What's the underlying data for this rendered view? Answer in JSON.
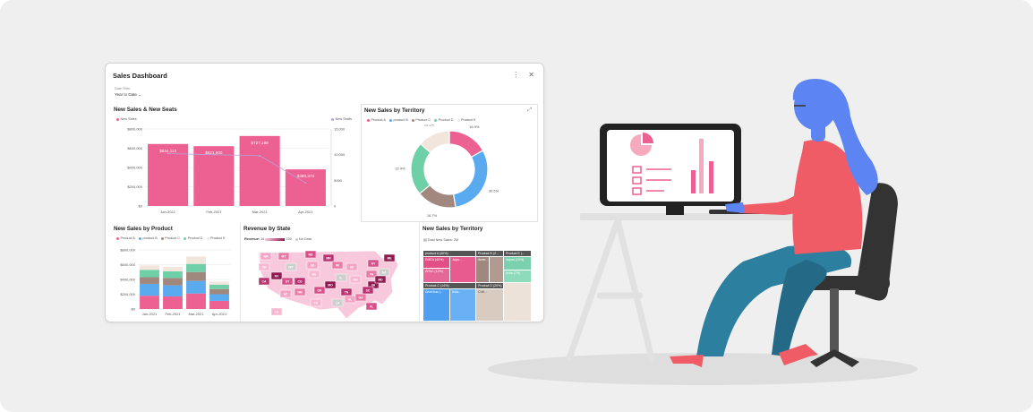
{
  "dashboard": {
    "title": "Sales Dashboard",
    "filter_label": "Date Filter",
    "filter_value": "Year to Date",
    "more_icon": "more-vert-icon",
    "close_icon": "close-icon"
  },
  "panels": {
    "sales_seats": {
      "title": "New Sales & New Seats",
      "legend_left": "New Sales",
      "legend_right": "New Seats"
    },
    "territory_donut": {
      "title": "New Sales by Territory",
      "legend": [
        "Product A",
        "product B",
        "Product C",
        "Product D",
        "Product E"
      ],
      "expand_icon": "expand-icon"
    },
    "by_product": {
      "title": "New Sales by Product",
      "legend": [
        "Product A",
        "product B",
        "Product C",
        "Product D",
        "Product E"
      ]
    },
    "by_state": {
      "title": "Revenue by State",
      "legend_label": "Revenue:",
      "legend_min": "16",
      "legend_max": "230",
      "legend_nodata": "No Data"
    },
    "treemap": {
      "title": "New Sales by Territory",
      "subtitle": "Total New Sales: 2M"
    }
  },
  "chart_data": [
    {
      "type": "bar",
      "title": "New Sales & New Seats",
      "categories": [
        "Jan-2021",
        "Feb-2021",
        "Mar-2021",
        "Apr-2021"
      ],
      "series": [
        {
          "name": "New Sales",
          "values": [
            644113,
            621600,
            727169,
            380373
          ]
        },
        {
          "name": "New Seats",
          "values": [
            10200,
            10000,
            9800,
            4500
          ]
        }
      ],
      "data_labels": [
        "$644,113",
        "$621,600",
        "$727,169",
        "$380,373"
      ],
      "ylim": [
        0,
        800000
      ],
      "y_ticks": [
        "$0",
        "$200,000",
        "$400,000",
        "$600,000",
        "$800,000"
      ],
      "y2_ticks": [
        "0",
        "5000",
        "10,000",
        "15,000"
      ],
      "colors": {
        "bar": "#ec6092",
        "line": "#b9a4d6"
      }
    },
    {
      "type": "pie",
      "title": "New Sales by Territory",
      "labels": [
        "Product A",
        "product B",
        "Product C",
        "Product D",
        "Product E"
      ],
      "values": [
        16.9,
        30.5,
        16.7,
        22.4,
        13.5
      ],
      "data_labels": [
        "16.9%",
        "30.5%",
        "16.7%",
        "22.4%",
        "13.5%"
      ],
      "colors": [
        "#ec6092",
        "#5aaaf0",
        "#a1887f",
        "#6fcfa6",
        "#f2e6dc"
      ]
    },
    {
      "type": "bar",
      "title": "New Sales by Product",
      "stacked": true,
      "categories": [
        "Jan-2021",
        "Feb-2021",
        "Mar-2021",
        "Apr-2021"
      ],
      "series": [
        {
          "name": "Product A",
          "values": [
            180000,
            170000,
            210000,
            110000
          ]
        },
        {
          "name": "product B",
          "values": [
            160000,
            150000,
            170000,
            90000
          ]
        },
        {
          "name": "Product C",
          "values": [
            90000,
            100000,
            120000,
            70000
          ]
        },
        {
          "name": "Product D",
          "values": [
            100000,
            90000,
            110000,
            60000
          ]
        },
        {
          "name": "Product E",
          "values": [
            60000,
            60000,
            100000,
            40000
          ]
        }
      ],
      "y_ticks": [
        "$0",
        "$200,000",
        "$400,000",
        "$600,000",
        "$800,000"
      ],
      "ylim": [
        0,
        800000
      ]
    }
  ],
  "treemap": {
    "headers": [
      "product A (40%)",
      "Product B (2...",
      "Product E (...",
      "Product C (14%)",
      "Product D (20%)"
    ],
    "cells": [
      "EMEA (40%)",
      "Japa...",
      "APAC (12%)",
      "Amer...",
      "Japan (13%)",
      "India (7%)",
      "Americas (...",
      "Inda...",
      "Chill..."
    ]
  },
  "map": {
    "state_labels": [
      "WA",
      "MT",
      "ND",
      "MN",
      "ME",
      "OR",
      "WY",
      "SD",
      "WI",
      "NY",
      "CA",
      "NV",
      "NE",
      "IL",
      "MI",
      "PA",
      "UT",
      "CO",
      "MO",
      "OH",
      "NJ",
      "AZ",
      "NM",
      "OK",
      "TN",
      "VA",
      "TX",
      "LA",
      "AL",
      "GA",
      "FL",
      "SC",
      "MD",
      "HI"
    ]
  },
  "colors": {
    "accent": "#ec6092",
    "bar_pink": "#ec6092",
    "donut_blue": "#5aaaf0",
    "donut_brown": "#a1887f",
    "donut_green": "#6fcfa6",
    "donut_cream": "#f2e6dc",
    "person_hair": "#5c84f2",
    "person_shirt": "#f05c66",
    "person_pants": "#2d7fa0",
    "chair": "#333333",
    "desk": "#e1e1e1"
  }
}
